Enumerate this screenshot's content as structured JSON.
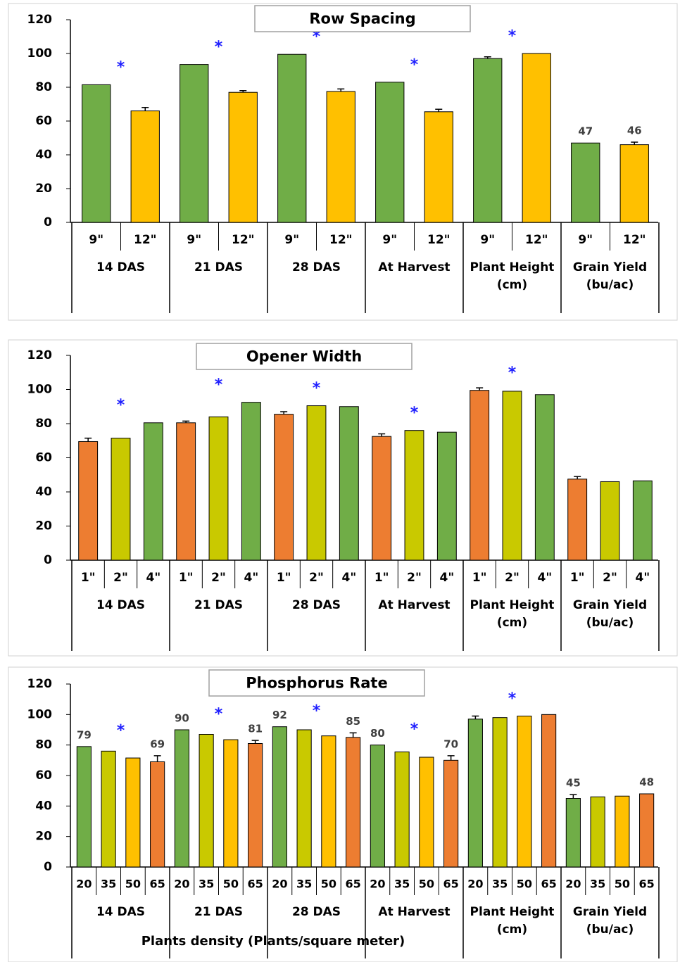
{
  "chart_data": [
    {
      "type": "bar",
      "title": "Row Spacing",
      "categories": [
        "14 DAS",
        "21 DAS",
        "28 DAS",
        "At Harvest",
        "Plant Height (cm)",
        "Grain Yield (bu/ac)"
      ],
      "series": [
        {
          "name": "9\"",
          "color": "#70AD47",
          "values": [
            81.5,
            93.5,
            99.5,
            83,
            97,
            47
          ],
          "errors": [
            null,
            null,
            null,
            null,
            1,
            null
          ],
          "value_labels": [
            null,
            null,
            null,
            null,
            null,
            "47"
          ]
        },
        {
          "name": "12\"",
          "color": "#FFC000",
          "values": [
            66,
            77,
            77.5,
            65.5,
            100,
            46
          ],
          "errors": [
            2,
            1,
            1.5,
            1.5,
            null,
            1.5
          ],
          "value_labels": [
            null,
            null,
            null,
            null,
            null,
            "46"
          ]
        }
      ],
      "significance_marker": "*",
      "significant_groups": [
        0,
        1,
        2,
        3,
        4
      ],
      "ylim": [
        0,
        120
      ],
      "yticks": [
        0,
        20,
        40,
        60,
        80,
        100,
        120
      ],
      "grid": false
    },
    {
      "type": "bar",
      "title": "Opener Width",
      "categories": [
        "14 DAS",
        "21 DAS",
        "28 DAS",
        "At Harvest",
        "Plant Height (cm)",
        "Grain Yield (bu/ac)"
      ],
      "series": [
        {
          "name": "1\"",
          "color": "#ED7D31",
          "values": [
            69.5,
            80.5,
            85.5,
            72.5,
            99.5,
            47.5
          ],
          "errors": [
            2,
            1,
            1.5,
            1.5,
            1.5,
            1.5
          ]
        },
        {
          "name": "2\"",
          "color": "#C9C900",
          "values": [
            71.5,
            84,
            90.5,
            76,
            99,
            46
          ],
          "errors": [
            null,
            null,
            null,
            null,
            null,
            null
          ]
        },
        {
          "name": "4\"",
          "color": "#70AD47",
          "values": [
            80.5,
            92.5,
            90,
            75,
            97,
            46.5
          ],
          "errors": [
            null,
            null,
            null,
            null,
            null,
            null
          ]
        }
      ],
      "significance_marker": "*",
      "significant_groups": [
        0,
        1,
        2,
        3,
        4
      ],
      "ylim": [
        0,
        120
      ],
      "yticks": [
        0,
        20,
        40,
        60,
        80,
        100,
        120
      ],
      "grid": false
    },
    {
      "type": "bar",
      "title": "Phosphorus Rate",
      "x_label": "Plants density (Plants/square meter)",
      "categories": [
        "14 DAS",
        "21 DAS",
        "28 DAS",
        "At Harvest",
        "Plant Height (cm)",
        "Grain Yield (bu/ac)"
      ],
      "series": [
        {
          "name": "20",
          "color": "#70AD47",
          "values": [
            79,
            90,
            92,
            80,
            97,
            45
          ],
          "errors": [
            null,
            null,
            null,
            null,
            2,
            2.5
          ],
          "value_labels": [
            "79",
            "90",
            "92",
            "80",
            null,
            "45"
          ]
        },
        {
          "name": "35",
          "color": "#C9C900",
          "values": [
            76,
            87,
            90,
            75.5,
            98,
            46
          ],
          "errors": [
            null,
            null,
            null,
            null,
            null,
            null
          ],
          "value_labels": [
            null,
            null,
            null,
            null,
            null,
            null
          ]
        },
        {
          "name": "50",
          "color": "#FFC000",
          "values": [
            71.5,
            83.5,
            86,
            72,
            99,
            46.5
          ],
          "errors": [
            null,
            null,
            null,
            null,
            null,
            null
          ],
          "value_labels": [
            null,
            null,
            null,
            null,
            null,
            null
          ]
        },
        {
          "name": "65",
          "color": "#ED7D31",
          "values": [
            69,
            81,
            85,
            70,
            100,
            48
          ],
          "errors": [
            4,
            2,
            3,
            3,
            null,
            null
          ],
          "value_labels": [
            "69",
            "81",
            "85",
            "70",
            null,
            "48"
          ]
        }
      ],
      "significance_marker": "*",
      "significant_groups": [
        0,
        1,
        2,
        3,
        4
      ],
      "ylim": [
        0,
        120
      ],
      "yticks": [
        0,
        20,
        40,
        60,
        80,
        100,
        120
      ],
      "grid": false
    }
  ]
}
